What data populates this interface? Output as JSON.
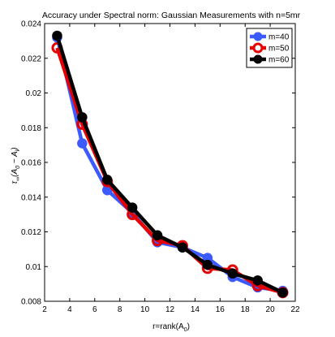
{
  "chart_data": {
    "type": "line",
    "title": "Accuracy under Spectral norm: Gaussian Measurements with n=5mr",
    "xlabel": "r=rank(A",
    "xlabel_sub": "0",
    "xlabel_close": ")",
    "ylabel": "τ",
    "ylabel_sub": "∞",
    "ylabel_rest": "(A",
    "ylabel_sub2": "0",
    "ylabel_rest2": " − A",
    "ylabel_sub3": "l",
    "ylabel_close": ")",
    "xlim": [
      2,
      22
    ],
    "ylim": [
      0.008,
      0.024
    ],
    "xticks": [
      2,
      4,
      6,
      8,
      10,
      12,
      14,
      16,
      18,
      20,
      22
    ],
    "yticks": [
      0.008,
      0.01,
      0.012,
      0.014,
      0.016,
      0.018,
      0.02,
      0.022,
      0.024
    ],
    "ytick_labels": [
      "0.008",
      "0.01",
      "0.012",
      "0.014",
      "0.016",
      "0.018",
      "0.02",
      "0.022",
      "0.024"
    ],
    "legend_position": "top-right",
    "grid": false,
    "series": [
      {
        "name": "m=40",
        "color": "#3b5bff",
        "marker": "filled-circle",
        "x": [
          3,
          5,
          7,
          9,
          11,
          13,
          15,
          17,
          19,
          21
        ],
        "y": [
          0.0232,
          0.0171,
          0.0144,
          0.0131,
          0.0114,
          0.0111,
          0.0105,
          0.0094,
          0.0088,
          0.0086
        ]
      },
      {
        "name": "m=50",
        "color": "#e60000",
        "marker": "open-circle",
        "x": [
          3,
          5,
          7,
          9,
          11,
          13,
          15,
          17,
          19,
          21
        ],
        "y": [
          0.0226,
          0.0182,
          0.0149,
          0.013,
          0.0115,
          0.0112,
          0.0099,
          0.0098,
          0.0089,
          0.0085
        ]
      },
      {
        "name": "m=60",
        "color": "#000000",
        "marker": "filled-circle",
        "x": [
          3,
          5,
          7,
          9,
          11,
          13,
          15,
          17,
          19,
          21
        ],
        "y": [
          0.0233,
          0.0186,
          0.015,
          0.0134,
          0.0118,
          0.0111,
          0.0101,
          0.0096,
          0.0092,
          0.0085
        ]
      }
    ]
  }
}
